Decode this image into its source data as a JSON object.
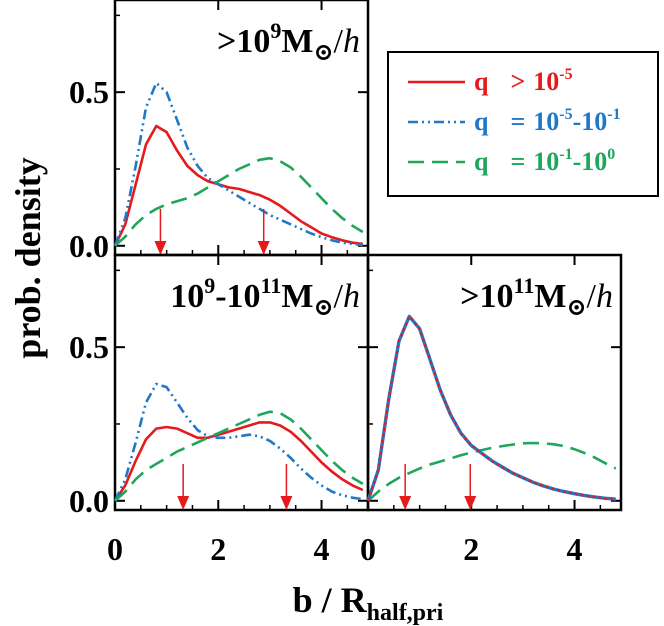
{
  "figure": {
    "ylabel": "prob. density",
    "xlabel_main": "b / R",
    "xlabel_sub": "half,pri"
  },
  "legend": {
    "q_symbol": "q",
    "entries": [
      {
        "series": "q_gt_1e-5",
        "op": ">",
        "base1": "10",
        "exp1": "-5",
        "base2": "",
        "exp2": "",
        "color": "#e41a1c",
        "dash": "solid"
      },
      {
        "series": "q_1e-5_1e-1",
        "op": "=",
        "base1": "10",
        "exp1": "-5",
        "base2": "-10",
        "exp2": "-1",
        "color": "#1f78c8",
        "dash": "dashdotdot"
      },
      {
        "series": "q_1e-1_1e0",
        "op": "=",
        "base1": "10",
        "exp1": "-1",
        "base2": "-10",
        "exp2": "0",
        "color": "#1fa65a",
        "dash": "longdash"
      }
    ]
  },
  "chart_data": [
    {
      "type": "line",
      "panel": "top-left",
      "annotation": {
        "pre": ">10",
        "exp1": "9",
        "mid": "",
        "exp2": "",
        "post": "M",
        "sun": "⊙",
        "slash": "/",
        "h": "h"
      },
      "xlim": [
        0,
        4.9
      ],
      "ylim": [
        -0.03,
        0.8
      ],
      "xticks": [
        0,
        2,
        4
      ],
      "xtick_labels": [
        "",
        "",
        ""
      ],
      "yticks": [
        0.0,
        0.5
      ],
      "ytick_labels": [
        "0.0",
        "0.5"
      ],
      "x": [
        0,
        0.2,
        0.4,
        0.6,
        0.8,
        1.0,
        1.2,
        1.4,
        1.6,
        1.8,
        2.0,
        2.2,
        2.4,
        2.6,
        2.8,
        3.0,
        3.2,
        3.4,
        3.6,
        3.8,
        4.0,
        4.2,
        4.4,
        4.6,
        4.8
      ],
      "series": [
        {
          "id": "q_gt_1e-5",
          "color": "#e41a1c",
          "dash": "solid",
          "values": [
            0.0,
            0.07,
            0.2,
            0.33,
            0.39,
            0.37,
            0.31,
            0.26,
            0.23,
            0.21,
            0.2,
            0.19,
            0.185,
            0.175,
            0.165,
            0.15,
            0.13,
            0.105,
            0.08,
            0.06,
            0.04,
            0.028,
            0.018,
            0.01,
            0.006
          ]
        },
        {
          "id": "q_1e-5_1e-1",
          "color": "#1f78c8",
          "dash": "dashdotdot",
          "values": [
            0.0,
            0.09,
            0.26,
            0.45,
            0.53,
            0.5,
            0.41,
            0.32,
            0.26,
            0.22,
            0.2,
            0.18,
            0.16,
            0.14,
            0.12,
            0.1,
            0.085,
            0.07,
            0.055,
            0.04,
            0.028,
            0.018,
            0.01,
            0.006,
            0.003
          ]
        },
        {
          "id": "q_1e-1_1e0",
          "color": "#1fa65a",
          "dash": "longdash",
          "values": [
            0.0,
            0.03,
            0.07,
            0.1,
            0.12,
            0.135,
            0.145,
            0.155,
            0.17,
            0.19,
            0.21,
            0.23,
            0.25,
            0.265,
            0.28,
            0.285,
            0.275,
            0.255,
            0.225,
            0.19,
            0.155,
            0.12,
            0.09,
            0.065,
            0.045
          ]
        }
      ],
      "markers": [
        {
          "x": 0.88,
          "color": "#e41a1c"
        },
        {
          "x": 2.88,
          "color": "#e41a1c"
        }
      ]
    },
    {
      "type": "line",
      "panel": "bottom-left",
      "annotation": {
        "pre": "10",
        "exp1": "9",
        "mid": "-10",
        "exp2": "11",
        "post": "M",
        "sun": "⊙",
        "slash": "/",
        "h": "h"
      },
      "xlim": [
        0,
        4.9
      ],
      "ylim": [
        -0.03,
        0.8
      ],
      "xticks": [
        0,
        2,
        4
      ],
      "xtick_labels": [
        "0",
        "2",
        "4"
      ],
      "yticks": [
        0.0,
        0.5
      ],
      "ytick_labels": [
        "0.0",
        "0.5"
      ],
      "x": [
        0,
        0.2,
        0.4,
        0.6,
        0.8,
        1.0,
        1.2,
        1.4,
        1.6,
        1.8,
        2.0,
        2.2,
        2.4,
        2.6,
        2.8,
        3.0,
        3.2,
        3.4,
        3.6,
        3.8,
        4.0,
        4.2,
        4.4,
        4.6,
        4.8
      ],
      "series": [
        {
          "id": "q_gt_1e-5",
          "color": "#e41a1c",
          "dash": "solid",
          "values": [
            0.0,
            0.05,
            0.13,
            0.2,
            0.235,
            0.24,
            0.235,
            0.22,
            0.205,
            0.205,
            0.215,
            0.225,
            0.235,
            0.245,
            0.255,
            0.255,
            0.245,
            0.225,
            0.195,
            0.16,
            0.125,
            0.095,
            0.07,
            0.05,
            0.035
          ]
        },
        {
          "id": "q_1e-5_1e-1",
          "color": "#1f78c8",
          "dash": "dashdotdot",
          "values": [
            0.0,
            0.07,
            0.19,
            0.32,
            0.38,
            0.37,
            0.32,
            0.27,
            0.23,
            0.21,
            0.205,
            0.205,
            0.21,
            0.215,
            0.21,
            0.195,
            0.17,
            0.14,
            0.105,
            0.075,
            0.05,
            0.03,
            0.018,
            0.01,
            0.005
          ]
        },
        {
          "id": "q_1e-1_1e0",
          "color": "#1fa65a",
          "dash": "longdash",
          "values": [
            0.0,
            0.03,
            0.07,
            0.1,
            0.12,
            0.14,
            0.16,
            0.175,
            0.19,
            0.205,
            0.22,
            0.235,
            0.25,
            0.265,
            0.28,
            0.29,
            0.285,
            0.265,
            0.235,
            0.2,
            0.165,
            0.13,
            0.1,
            0.075,
            0.055
          ]
        }
      ],
      "markers": [
        {
          "x": 1.32,
          "color": "#e41a1c"
        },
        {
          "x": 3.32,
          "color": "#e41a1c"
        }
      ]
    },
    {
      "type": "line",
      "panel": "bottom-right",
      "annotation": {
        "pre": ">10",
        "exp1": "11",
        "mid": "",
        "exp2": "",
        "post": "M",
        "sun": "⊙",
        "slash": "/",
        "h": "h"
      },
      "xlim": [
        0,
        4.9
      ],
      "ylim": [
        -0.03,
        0.8
      ],
      "xticks": [
        0,
        2,
        4
      ],
      "xtick_labels": [
        "0",
        "2",
        "4"
      ],
      "yticks": [
        0.0,
        0.5
      ],
      "ytick_labels": [
        "",
        ""
      ],
      "x": [
        0,
        0.2,
        0.4,
        0.6,
        0.8,
        1.0,
        1.2,
        1.4,
        1.6,
        1.8,
        2.0,
        2.2,
        2.4,
        2.6,
        2.8,
        3.0,
        3.2,
        3.4,
        3.6,
        3.8,
        4.0,
        4.2,
        4.4,
        4.6,
        4.8
      ],
      "series": [
        {
          "id": "q_1e-1_1e0",
          "color": "#1fa65a",
          "dash": "longdash",
          "values": [
            0.0,
            0.03,
            0.055,
            0.075,
            0.09,
            0.105,
            0.118,
            0.128,
            0.138,
            0.148,
            0.157,
            0.165,
            0.172,
            0.178,
            0.183,
            0.187,
            0.188,
            0.187,
            0.184,
            0.178,
            0.168,
            0.155,
            0.14,
            0.122,
            0.105
          ]
        },
        {
          "id": "q_1e-5_1e-1",
          "color": "#1f78c8",
          "dash": "solid-thick",
          "values": [
            0.0,
            0.1,
            0.33,
            0.52,
            0.6,
            0.56,
            0.46,
            0.36,
            0.28,
            0.22,
            0.18,
            0.155,
            0.13,
            0.11,
            0.09,
            0.075,
            0.06,
            0.048,
            0.038,
            0.03,
            0.023,
            0.017,
            0.012,
            0.008,
            0.005
          ]
        },
        {
          "id": "q_gt_1e-5",
          "color": "#e41a1c",
          "dash": "dotted",
          "values": [
            0.0,
            0.1,
            0.33,
            0.52,
            0.6,
            0.56,
            0.46,
            0.36,
            0.28,
            0.22,
            0.18,
            0.155,
            0.13,
            0.11,
            0.09,
            0.075,
            0.06,
            0.048,
            0.038,
            0.03,
            0.023,
            0.017,
            0.012,
            0.008,
            0.005
          ]
        }
      ],
      "markers": [
        {
          "x": 0.72,
          "color": "#e41a1c"
        },
        {
          "x": 1.98,
          "color": "#e41a1c"
        }
      ]
    }
  ]
}
